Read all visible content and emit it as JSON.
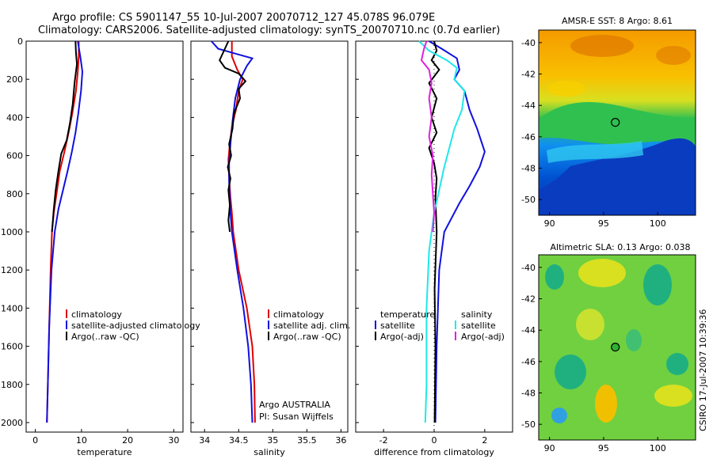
{
  "header": {
    "line1": "Argo profile: CS 5901147_55 10-Jul-2007 20070712_127 45.078S 96.079E",
    "line2": "Climatology: CARS2006. Satellite-adjusted climatology: synTS_20070710.nc (0.7d earlier)"
  },
  "colors": {
    "red": "#e00000",
    "blue": "#1010e0",
    "black": "#000000",
    "cyan": "#20e8e8",
    "magenta": "#e020e0",
    "frame": "#000000"
  },
  "chart_data": [
    {
      "type": "line",
      "id": "temperature",
      "xlabel": "temperature",
      "xlim": [
        -2,
        32
      ],
      "ylim": [
        0,
        2050
      ],
      "yreversed": true,
      "xticks": [
        "0",
        "10",
        "20",
        "30"
      ],
      "yticks": [
        "0",
        "200",
        "400",
        "600",
        "800",
        "1000",
        "1200",
        "1400",
        "1600",
        "1800",
        "2000"
      ],
      "legend": [
        "climatology",
        "satellite-adjusted climatology",
        "Argo(..raw -QC)"
      ],
      "series": [
        {
          "name": "climatology",
          "color": "red",
          "points": [
            [
              9.4,
              0
            ],
            [
              9.4,
              80
            ],
            [
              9.2,
              160
            ],
            [
              8.8,
              260
            ],
            [
              8.0,
              380
            ],
            [
              7.2,
              480
            ],
            [
              6.3,
              580
            ],
            [
              5.3,
              680
            ],
            [
              4.6,
              800
            ],
            [
              4.0,
              900
            ],
            [
              3.6,
              1000
            ],
            [
              3.3,
              1200
            ],
            [
              3.0,
              1500
            ],
            [
              2.7,
              1800
            ],
            [
              2.5,
              2000
            ]
          ]
        },
        {
          "name": "satellite-adjusted climatology",
          "color": "blue",
          "points": [
            [
              9.2,
              0
            ],
            [
              9.8,
              90
            ],
            [
              10.2,
              160
            ],
            [
              9.9,
              260
            ],
            [
              9.3,
              380
            ],
            [
              8.7,
              480
            ],
            [
              7.9,
              580
            ],
            [
              7.0,
              680
            ],
            [
              6.0,
              780
            ],
            [
              5.0,
              880
            ],
            [
              4.2,
              1000
            ],
            [
              3.5,
              1200
            ],
            [
              3.0,
              1500
            ],
            [
              2.7,
              1800
            ],
            [
              2.5,
              2000
            ]
          ]
        },
        {
          "name": "Argo(..raw -QC)",
          "color": "black",
          "points": [
            [
              8.7,
              0
            ],
            [
              8.8,
              60
            ],
            [
              9.0,
              120
            ],
            [
              8.5,
              220
            ],
            [
              8.1,
              330
            ],
            [
              7.5,
              430
            ],
            [
              6.8,
              520
            ],
            [
              5.6,
              590
            ],
            [
              5.0,
              680
            ],
            [
              4.4,
              780
            ],
            [
              4.0,
              880
            ],
            [
              3.6,
              1000
            ]
          ]
        }
      ]
    },
    {
      "type": "line",
      "id": "salinity",
      "xlabel": "salinity",
      "xlim": [
        33.8,
        36.1
      ],
      "ylim": [
        0,
        2050
      ],
      "yreversed": true,
      "xticks": [
        "34",
        "34.5",
        "35",
        "35.5",
        "36"
      ],
      "legend": [
        "climatology",
        "satellite adj. clim.",
        "Argo(..raw -QC)"
      ],
      "annotation": [
        "Argo AUSTRALIA",
        "PI: Susan Wijffels"
      ],
      "series": [
        {
          "name": "climatology",
          "color": "red",
          "points": [
            [
              34.4,
              0
            ],
            [
              34.4,
              80
            ],
            [
              34.48,
              150
            ],
            [
              34.56,
              200
            ],
            [
              34.5,
              260
            ],
            [
              34.46,
              360
            ],
            [
              34.4,
              450
            ],
            [
              34.37,
              540
            ],
            [
              34.35,
              620
            ],
            [
              34.36,
              720
            ],
            [
              34.38,
              820
            ],
            [
              34.4,
              900
            ],
            [
              34.42,
              1000
            ],
            [
              34.5,
              1200
            ],
            [
              34.62,
              1400
            ],
            [
              34.7,
              1600
            ],
            [
              34.73,
              1800
            ],
            [
              34.74,
              2000
            ]
          ]
        },
        {
          "name": "satellite adj. clim.",
          "color": "blue",
          "points": [
            [
              34.1,
              0
            ],
            [
              34.2,
              40
            ],
            [
              34.5,
              70
            ],
            [
              34.7,
              90
            ],
            [
              34.62,
              130
            ],
            [
              34.52,
              200
            ],
            [
              34.45,
              300
            ],
            [
              34.41,
              420
            ],
            [
              34.38,
              540
            ],
            [
              34.36,
              640
            ],
            [
              34.36,
              740
            ],
            [
              34.37,
              820
            ],
            [
              34.38,
              900
            ],
            [
              34.4,
              1000
            ],
            [
              34.48,
              1200
            ],
            [
              34.57,
              1400
            ],
            [
              34.64,
              1600
            ],
            [
              34.68,
              1800
            ],
            [
              34.7,
              2000
            ]
          ]
        },
        {
          "name": "Argo(..raw -QC)",
          "color": "black",
          "points": [
            [
              34.35,
              0
            ],
            [
              34.22,
              100
            ],
            [
              34.3,
              140
            ],
            [
              34.5,
              170
            ],
            [
              34.6,
              210
            ],
            [
              34.5,
              250
            ],
            [
              34.52,
              300
            ],
            [
              34.43,
              380
            ],
            [
              34.41,
              460
            ],
            [
              34.36,
              540
            ],
            [
              34.39,
              600
            ],
            [
              34.34,
              660
            ],
            [
              34.38,
              720
            ],
            [
              34.35,
              780
            ],
            [
              34.37,
              860
            ],
            [
              34.35,
              940
            ],
            [
              34.37,
              1000
            ]
          ]
        }
      ]
    },
    {
      "type": "line",
      "id": "difference",
      "xlabel": "difference from climatology",
      "xlim": [
        -3.1,
        3.1
      ],
      "ylim": [
        0,
        2050
      ],
      "yreversed": true,
      "xticks": [
        "-2",
        "0",
        "2"
      ],
      "legend": [
        "temperature",
        "satellite",
        "Argo(-adj)",
        "salinity",
        "satellite",
        "Argo(-adj)"
      ],
      "series": [
        {
          "name": "temperature satellite",
          "color": "blue",
          "points": [
            [
              -0.2,
              0
            ],
            [
              0.3,
              40
            ],
            [
              0.9,
              90
            ],
            [
              1.0,
              150
            ],
            [
              0.8,
              200
            ],
            [
              1.2,
              260
            ],
            [
              1.4,
              360
            ],
            [
              1.7,
              460
            ],
            [
              2.0,
              580
            ],
            [
              1.8,
              660
            ],
            [
              1.4,
              760
            ],
            [
              1.0,
              850
            ],
            [
              0.4,
              1000
            ],
            [
              0.2,
              1200
            ],
            [
              0.1,
              1600
            ],
            [
              0.05,
              2000
            ]
          ]
        },
        {
          "name": "temperature Argo(-adj)",
          "color": "black",
          "points": [
            [
              0.0,
              0
            ],
            [
              0.1,
              50
            ],
            [
              -0.1,
              100
            ],
            [
              0.2,
              150
            ],
            [
              -0.2,
              220
            ],
            [
              0.1,
              300
            ],
            [
              -0.1,
              400
            ],
            [
              0.1,
              480
            ],
            [
              -0.2,
              560
            ],
            [
              0.0,
              640
            ],
            [
              0.1,
              720
            ],
            [
              0.05,
              820
            ],
            [
              0.1,
              1000
            ],
            [
              0.02,
              1300
            ],
            [
              0.05,
              1600
            ],
            [
              0.02,
              2000
            ]
          ]
        },
        {
          "name": "salinity satellite",
          "color": "cyan",
          "points": [
            [
              -0.6,
              0
            ],
            [
              -0.2,
              50
            ],
            [
              0.5,
              100
            ],
            [
              0.9,
              140
            ],
            [
              0.8,
              200
            ],
            [
              1.2,
              260
            ],
            [
              1.1,
              360
            ],
            [
              0.8,
              460
            ],
            [
              0.6,
              560
            ],
            [
              0.4,
              660
            ],
            [
              0.2,
              780
            ],
            [
              0.0,
              900
            ],
            [
              -0.2,
              1100
            ],
            [
              -0.3,
              1400
            ],
            [
              -0.3,
              1800
            ],
            [
              -0.35,
              2000
            ]
          ]
        },
        {
          "name": "salinity Argo(-adj)",
          "color": "magenta",
          "points": [
            [
              -0.3,
              0
            ],
            [
              -0.4,
              40
            ],
            [
              -0.5,
              100
            ],
            [
              -0.2,
              150
            ],
            [
              -0.1,
              220
            ],
            [
              -0.2,
              300
            ],
            [
              -0.1,
              400
            ],
            [
              -0.2,
              500
            ],
            [
              -0.05,
              600
            ],
            [
              -0.1,
              700
            ],
            [
              -0.05,
              800
            ],
            [
              0.0,
              900
            ],
            [
              -0.05,
              1000
            ]
          ]
        }
      ]
    },
    {
      "type": "heatmap",
      "id": "sst-map",
      "title": "AMSR-E SST: 8 Argo: 8.61",
      "xlim": [
        89,
        103.5
      ],
      "ylim": [
        -51,
        -39.2
      ],
      "xticks": [
        "90",
        "95",
        "100"
      ],
      "yticks": [
        "-40",
        "-42",
        "-44",
        "-46",
        "-48",
        "-50"
      ],
      "marker": [
        96.08,
        -45.08
      ]
    },
    {
      "type": "heatmap",
      "id": "sla-map",
      "title": "Altimetric SLA: 0.13 Argo: 0.038",
      "xlim": [
        89,
        103.5
      ],
      "ylim": [
        -51,
        -39.2
      ],
      "xticks": [
        "90",
        "95",
        "100"
      ],
      "yticks": [
        "-40",
        "-42",
        "-44",
        "-46",
        "-48",
        "-50"
      ],
      "marker": [
        96.08,
        -45.08
      ]
    }
  ],
  "footer": {
    "stamp": "CSIRO 17-Jul-2007 10:39:36"
  }
}
